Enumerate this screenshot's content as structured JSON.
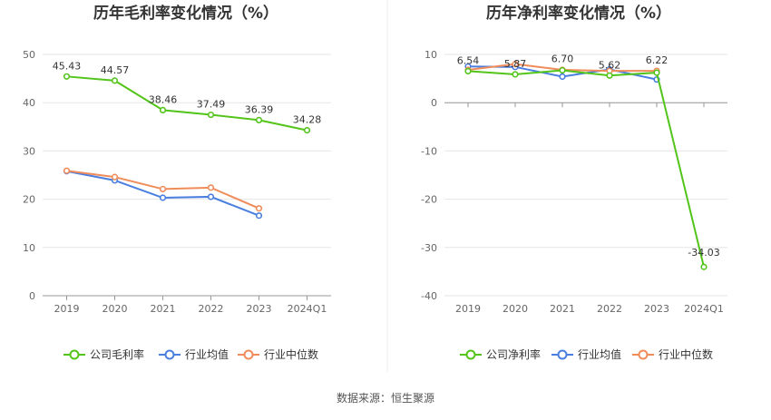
{
  "source_label": "数据来源：恒生聚源",
  "chart_data": [
    {
      "type": "line",
      "title": "历年毛利率变化情况（%）",
      "categories": [
        "2019",
        "2020",
        "2021",
        "2022",
        "2023",
        "2024Q1"
      ],
      "ylim": [
        0,
        50
      ],
      "yticks": [
        0,
        10,
        20,
        30,
        40,
        50
      ],
      "grid": true,
      "legend_position": "bottom",
      "series": [
        {
          "name": "公司毛利率",
          "color": "#52c41a",
          "values": [
            45.43,
            44.57,
            38.46,
            37.49,
            36.39,
            34.28
          ],
          "labels": [
            "45.43",
            "44.57",
            "38.46",
            "37.49",
            "36.39",
            "34.28"
          ]
        },
        {
          "name": "行业均值",
          "color": "#4a7fe0",
          "values": [
            25.8,
            23.9,
            20.3,
            20.5,
            16.6,
            null
          ]
        },
        {
          "name": "行业中位数",
          "color": "#f08c5a",
          "values": [
            25.9,
            24.6,
            22.1,
            22.4,
            18.1,
            null
          ]
        }
      ]
    },
    {
      "type": "line",
      "title": "历年净利率变化情况（%）",
      "categories": [
        "2019",
        "2020",
        "2021",
        "2022",
        "2023",
        "2024Q1"
      ],
      "ylim": [
        -40,
        10
      ],
      "yticks": [
        -40,
        -30,
        -20,
        -10,
        0,
        10
      ],
      "grid": true,
      "legend_position": "bottom",
      "series": [
        {
          "name": "公司净利率",
          "color": "#52c41a",
          "values": [
            6.54,
            5.87,
            6.7,
            5.62,
            6.22,
            -34.03
          ],
          "labels": [
            "6.54",
            "5.87",
            "6.70",
            "5.62",
            "6.22",
            "-34.03"
          ]
        },
        {
          "name": "行业均值",
          "color": "#4a7fe0",
          "values": [
            7.5,
            7.4,
            5.4,
            6.9,
            4.8,
            null
          ]
        },
        {
          "name": "行业中位数",
          "color": "#f08c5a",
          "values": [
            6.8,
            8.0,
            6.8,
            6.6,
            6.6,
            null
          ]
        }
      ]
    }
  ]
}
